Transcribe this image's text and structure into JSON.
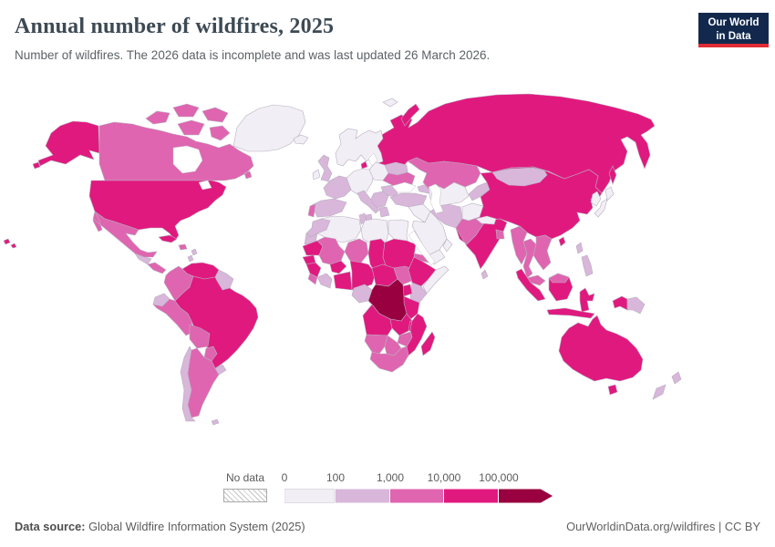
{
  "header": {
    "title": "Annual number of wildfires, 2025",
    "subtitle": "Number of wildfires. The 2026 data is incomplete and was last updated 26 March 2026.",
    "logo_line1": "Our World",
    "logo_line2": "in Data",
    "logo_bg": "#12294d",
    "logo_accent": "#e02b35"
  },
  "legend": {
    "no_data_label": "No data",
    "tick_labels": [
      "0",
      "100",
      "1,000",
      "10,000",
      "100,000"
    ],
    "bucket_colors": [
      "#f2eef5",
      "#d8b7da",
      "#df65b0",
      "#e0197f",
      "#98003f"
    ]
  },
  "footer": {
    "source_label": "Data source:",
    "source_text": " Global Wildfire Information System (2025)",
    "right_text": "OurWorldinData.org/wildfires | CC BY"
  },
  "chart_data": {
    "type": "choropleth",
    "title": "Annual number of wildfires, 2025",
    "unit": "wildfires",
    "legend_buckets": [
      "0–100",
      "100–1,000",
      "1,000–10,000",
      "10,000–100,000",
      "100,000+"
    ],
    "scale": "logarithmic bins",
    "regions": [
      {
        "id": "russia",
        "name": "Russia",
        "bucket": 4
      },
      {
        "id": "canada",
        "name": "Canada",
        "bucket": 3
      },
      {
        "id": "usa",
        "name": "United States",
        "bucket": 4
      },
      {
        "id": "alaska",
        "name": "United States (Alaska)",
        "bucket": 4
      },
      {
        "id": "hawaii",
        "name": "United States (Hawaii)",
        "bucket": 4
      },
      {
        "id": "greenland",
        "name": "Greenland",
        "bucket": 1
      },
      {
        "id": "arctic_islands_w",
        "name": "Canadian Arctic Islands (west)",
        "bucket": 3
      },
      {
        "id": "arctic_islands_e",
        "name": "Canadian Arctic Islands (east)",
        "bucket": 3
      },
      {
        "id": "mexico",
        "name": "Mexico",
        "bucket": 3
      },
      {
        "id": "central_america_n",
        "name": "Guatemala / Honduras",
        "bucket": 2
      },
      {
        "id": "central_america_s",
        "name": "Nicaragua / Costa Rica / Panama",
        "bucket": 3
      },
      {
        "id": "cuba",
        "name": "Cuba",
        "bucket": 4
      },
      {
        "id": "hispaniola",
        "name": "Hispaniola",
        "bucket": 3
      },
      {
        "id": "caribbean",
        "name": "Lesser Antilles",
        "bucket": 2
      },
      {
        "id": "colombia",
        "name": "Colombia",
        "bucket": 3
      },
      {
        "id": "venezuela",
        "name": "Venezuela",
        "bucket": 4
      },
      {
        "id": "guyanas",
        "name": "Guyana / Suriname",
        "bucket": 2
      },
      {
        "id": "ecuador",
        "name": "Ecuador",
        "bucket": 2
      },
      {
        "id": "peru",
        "name": "Peru",
        "bucket": 3
      },
      {
        "id": "brazil",
        "name": "Brazil",
        "bucket": 4
      },
      {
        "id": "bolivia",
        "name": "Bolivia",
        "bucket": 3
      },
      {
        "id": "paraguay",
        "name": "Paraguay",
        "bucket": 3
      },
      {
        "id": "chile",
        "name": "Chile",
        "bucket": 2
      },
      {
        "id": "argentina",
        "name": "Argentina",
        "bucket": 3
      },
      {
        "id": "uruguay",
        "name": "Uruguay",
        "bucket": 2
      },
      {
        "id": "falklands",
        "name": "Falkland Islands",
        "bucket": 2
      },
      {
        "id": "iceland",
        "name": "Iceland",
        "bucket": 1
      },
      {
        "id": "uk",
        "name": "United Kingdom",
        "bucket": 2
      },
      {
        "id": "ireland",
        "name": "Ireland",
        "bucket": 1
      },
      {
        "id": "scandinavia",
        "name": "Norway / Sweden / Finland",
        "bucket": 1
      },
      {
        "id": "denmark",
        "name": "Denmark",
        "bucket": 4
      },
      {
        "id": "germany_central",
        "name": "Central Europe",
        "bucket": 1
      },
      {
        "id": "poland_baltics",
        "name": "Poland / Baltics",
        "bucket": 1
      },
      {
        "id": "belarus",
        "name": "Belarus",
        "bucket": 2
      },
      {
        "id": "ukraine",
        "name": "Ukraine",
        "bucket": 3
      },
      {
        "id": "romania",
        "name": "Romania",
        "bucket": 2
      },
      {
        "id": "balkans",
        "name": "Balkans",
        "bucket": 2
      },
      {
        "id": "greece",
        "name": "Greece",
        "bucket": 2
      },
      {
        "id": "italy",
        "name": "Italy",
        "bucket": 2
      },
      {
        "id": "france",
        "name": "France",
        "bucket": 2
      },
      {
        "id": "spain",
        "name": "Spain",
        "bucket": 2
      },
      {
        "id": "portugal",
        "name": "Portugal",
        "bucket": 3
      },
      {
        "id": "svalbard",
        "name": "Svalbard",
        "bucket": 1
      },
      {
        "id": "novaya_zemlya",
        "name": "Novaya Zemlya",
        "bucket": 4
      },
      {
        "id": "turkey",
        "name": "Turkey",
        "bucket": 2
      },
      {
        "id": "caucasus",
        "name": "Caucasus",
        "bucket": 2
      },
      {
        "id": "syria_iraq",
        "name": "Syria / Iraq",
        "bucket": 1
      },
      {
        "id": "saudi",
        "name": "Saudi Arabia",
        "bucket": 1
      },
      {
        "id": "yemen",
        "name": "Yemen",
        "bucket": 1
      },
      {
        "id": "oman",
        "name": "Oman",
        "bucket": 1
      },
      {
        "id": "iran",
        "name": "Iran",
        "bucket": 2
      },
      {
        "id": "afghanistan",
        "name": "Afghanistan",
        "bucket": 1
      },
      {
        "id": "pakistan",
        "name": "Pakistan",
        "bucket": 3
      },
      {
        "id": "central_asia",
        "name": "Turkmenistan / Uzbekistan",
        "bucket": 1
      },
      {
        "id": "kyrgyz_tajik",
        "name": "Kyrgyzstan / Tajikistan",
        "bucket": 2
      },
      {
        "id": "kazakhstan",
        "name": "Kazakhstan",
        "bucket": 3
      },
      {
        "id": "china",
        "name": "China",
        "bucket": 4
      },
      {
        "id": "mongolia",
        "name": "Mongolia",
        "bucket": 2
      },
      {
        "id": "korea",
        "name": "Korea",
        "bucket": 1
      },
      {
        "id": "japan",
        "name": "Japan",
        "bucket": 1
      },
      {
        "id": "sakhalin",
        "name": "Sakhalin",
        "bucket": 4
      },
      {
        "id": "taiwan",
        "name": "Taiwan",
        "bucket": 4
      },
      {
        "id": "india",
        "name": "India",
        "bucket": 4
      },
      {
        "id": "nepal",
        "name": "Nepal",
        "bucket": 1
      },
      {
        "id": "bangladesh",
        "name": "Bangladesh",
        "bucket": 3
      },
      {
        "id": "sri_lanka",
        "name": "Sri Lanka",
        "bucket": 2
      },
      {
        "id": "myanmar",
        "name": "Myanmar",
        "bucket": 3
      },
      {
        "id": "thailand",
        "name": "Thailand",
        "bucket": 3
      },
      {
        "id": "indochina",
        "name": "Laos / Vietnam / Cambodia",
        "bucket": 3
      },
      {
        "id": "malaysia",
        "name": "Malaysia",
        "bucket": 3
      },
      {
        "id": "sumatra",
        "name": "Indonesia (Sumatra)",
        "bucket": 4
      },
      {
        "id": "borneo",
        "name": "Indonesia (Kalimantan)",
        "bucket": 4
      },
      {
        "id": "malaysia_borneo",
        "name": "Malaysia (Borneo)",
        "bucket": 3
      },
      {
        "id": "java",
        "name": "Indonesia (Java)",
        "bucket": 4
      },
      {
        "id": "sulawesi",
        "name": "Indonesia (Sulawesi)",
        "bucket": 4
      },
      {
        "id": "west_papua",
        "name": "Indonesia (Papua)",
        "bucket": 4
      },
      {
        "id": "png",
        "name": "Papua New Guinea",
        "bucket": 2
      },
      {
        "id": "philippines",
        "name": "Philippines",
        "bucket": 2
      },
      {
        "id": "australia",
        "name": "Australia",
        "bucket": 4
      },
      {
        "id": "tasmania",
        "name": "Australia (Tasmania)",
        "bucket": 4
      },
      {
        "id": "new_zealand",
        "name": "New Zealand",
        "bucket": 2
      },
      {
        "id": "morocco",
        "name": "Morocco",
        "bucket": 2
      },
      {
        "id": "western_sahara",
        "name": "Western Sahara",
        "bucket": 2
      },
      {
        "id": "algeria",
        "name": "Algeria",
        "bucket": 1
      },
      {
        "id": "tunisia",
        "name": "Tunisia",
        "bucket": 2
      },
      {
        "id": "libya",
        "name": "Libya",
        "bucket": 1
      },
      {
        "id": "egypt",
        "name": "Egypt",
        "bucket": 1
      },
      {
        "id": "mauritania",
        "name": "Mauritania",
        "bucket": 4
      },
      {
        "id": "mali",
        "name": "Mali",
        "bucket": 3
      },
      {
        "id": "niger",
        "name": "Niger",
        "bucket": 3
      },
      {
        "id": "chad",
        "name": "Chad",
        "bucket": 4
      },
      {
        "id": "sudan",
        "name": "Sudan",
        "bucket": 4
      },
      {
        "id": "senegal",
        "name": "Senegal",
        "bucket": 4
      },
      {
        "id": "guinea",
        "name": "Guinea",
        "bucket": 4
      },
      {
        "id": "sierra_liberia",
        "name": "Sierra Leone / Liberia",
        "bucket": 3
      },
      {
        "id": "ivory_coast",
        "name": "Côte d'Ivoire",
        "bucket": 2
      },
      {
        "id": "burkina",
        "name": "Burkina Faso",
        "bucket": 4
      },
      {
        "id": "ghana_togo_benin",
        "name": "Ghana / Togo / Benin",
        "bucket": 4
      },
      {
        "id": "nigeria",
        "name": "Nigeria",
        "bucket": 4
      },
      {
        "id": "cameroon_car",
        "name": "Cameroon / Central African Rep.",
        "bucket": 4
      },
      {
        "id": "south_sudan",
        "name": "South Sudan",
        "bucket": 3
      },
      {
        "id": "eritrea",
        "name": "Eritrea",
        "bucket": 3
      },
      {
        "id": "ethiopia",
        "name": "Ethiopia",
        "bucket": 4
      },
      {
        "id": "somalia",
        "name": "Somalia",
        "bucket": 1
      },
      {
        "id": "kenya",
        "name": "Kenya",
        "bucket": 2
      },
      {
        "id": "uganda",
        "name": "Uganda",
        "bucket": 4
      },
      {
        "id": "gabon_congo",
        "name": "Gabon / Congo",
        "bucket": 2
      },
      {
        "id": "drc",
        "name": "Democratic Republic of Congo",
        "bucket": 5
      },
      {
        "id": "tanzania",
        "name": "Tanzania",
        "bucket": 4
      },
      {
        "id": "angola",
        "name": "Angola",
        "bucket": 4
      },
      {
        "id": "zambia",
        "name": "Zambia",
        "bucket": 4
      },
      {
        "id": "malawi",
        "name": "Malawi",
        "bucket": 4
      },
      {
        "id": "mozambique",
        "name": "Mozambique",
        "bucket": 4
      },
      {
        "id": "zimbabwe",
        "name": "Zimbabwe",
        "bucket": 3
      },
      {
        "id": "namibia",
        "name": "Namibia",
        "bucket": 3
      },
      {
        "id": "botswana",
        "name": "Botswana",
        "bucket": 3
      },
      {
        "id": "south_africa",
        "name": "South Africa",
        "bucket": 3
      },
      {
        "id": "madagascar",
        "name": "Madagascar",
        "bucket": 4
      }
    ]
  }
}
